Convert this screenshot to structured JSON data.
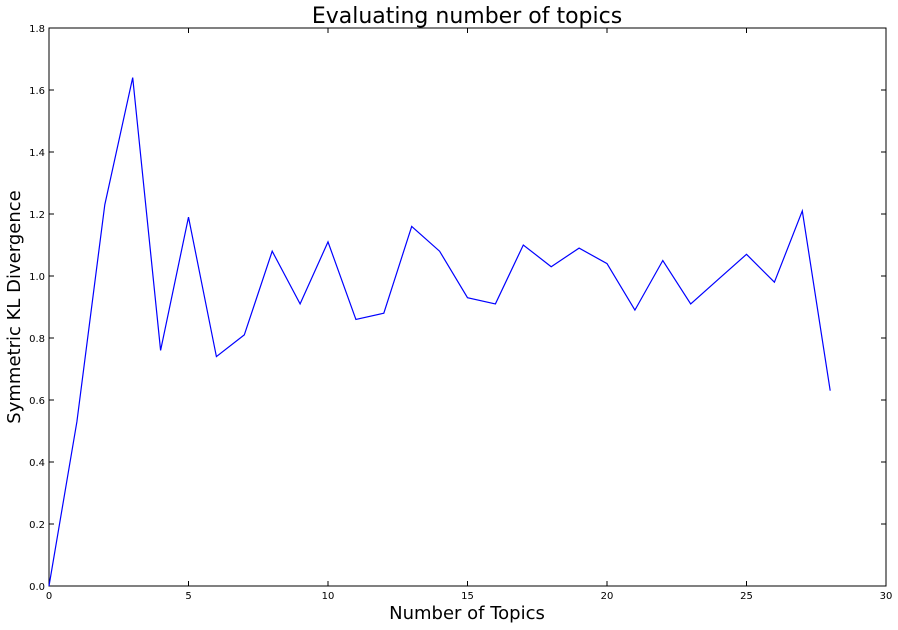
{
  "chart_data": {
    "type": "line",
    "title": "Evaluating number of topics",
    "xlabel": "Number of Topics",
    "ylabel": "Symmetric KL Divergence",
    "xlim": [
      0,
      30
    ],
    "ylim": [
      0,
      1.8
    ],
    "xticks": [
      0,
      5,
      10,
      15,
      20,
      25,
      30
    ],
    "xtick_labels": [
      "0",
      "5",
      "10",
      "15",
      "20",
      "25",
      "30"
    ],
    "yticks": [
      0.0,
      0.2,
      0.4,
      0.6,
      0.8,
      1.0,
      1.2,
      1.4,
      1.6,
      1.8
    ],
    "ytick_labels": [
      "0.0",
      "0.2",
      "0.4",
      "0.6",
      "0.8",
      "1.0",
      "1.2",
      "1.4",
      "1.6",
      "1.8"
    ],
    "grid": false,
    "series": [
      {
        "name": "KL divergence",
        "color": "#0000ff",
        "x": [
          0,
          1,
          2,
          3,
          4,
          5,
          6,
          7,
          8,
          9,
          10,
          11,
          12,
          13,
          14,
          15,
          16,
          17,
          18,
          19,
          20,
          21,
          22,
          23,
          24,
          25,
          26,
          27,
          28
        ],
        "y": [
          0.0,
          0.53,
          1.23,
          1.64,
          0.76,
          1.19,
          0.74,
          0.81,
          1.08,
          0.91,
          1.11,
          0.86,
          0.88,
          1.16,
          1.08,
          0.93,
          0.91,
          1.1,
          1.03,
          1.09,
          1.04,
          0.89,
          1.05,
          0.91,
          0.99,
          1.07,
          0.98,
          1.21,
          0.63
        ]
      }
    ]
  }
}
